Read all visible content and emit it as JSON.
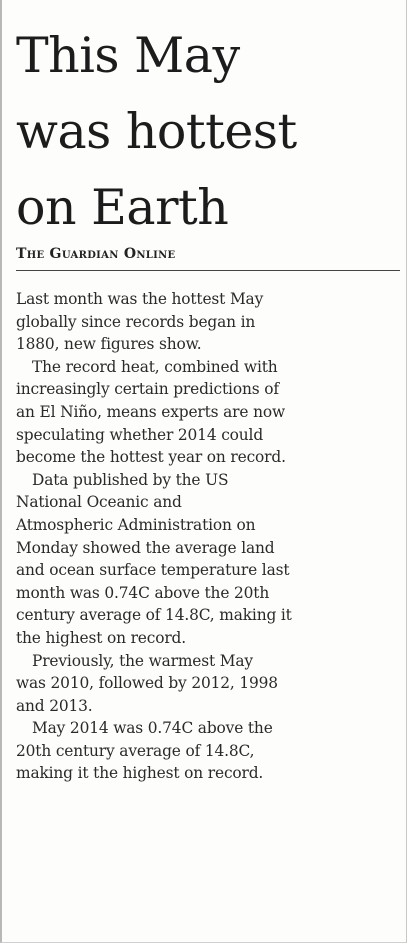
{
  "article": {
    "headline_lines": [
      "This May",
      "was hottest",
      "on Earth"
    ],
    "source": "The Guardian Online",
    "paragraphs": [
      [
        "Last month was the hottest May",
        "globally since records began in",
        "1880, new figures show."
      ],
      [
        "The record heat, combined with",
        "increasingly certain predictions of",
        "an El Niño, means experts are now",
        "speculating whether 2014 could",
        "become the hottest year on record."
      ],
      [
        "Data published by the US",
        "National Oceanic and",
        "Atmospheric Administration on",
        "Monday showed the average land",
        "and ocean surface temperature last",
        "month was 0.74C above the 20th",
        "century average of 14.8C, making it",
        "the highest on record."
      ],
      [
        "Previously, the warmest May",
        "was 2010, followed by 2012, 1998",
        "and 2013."
      ],
      [
        "May 2014 was 0.74C above the",
        "20th century average of 14.8C,",
        "making it the highest on record."
      ]
    ]
  }
}
